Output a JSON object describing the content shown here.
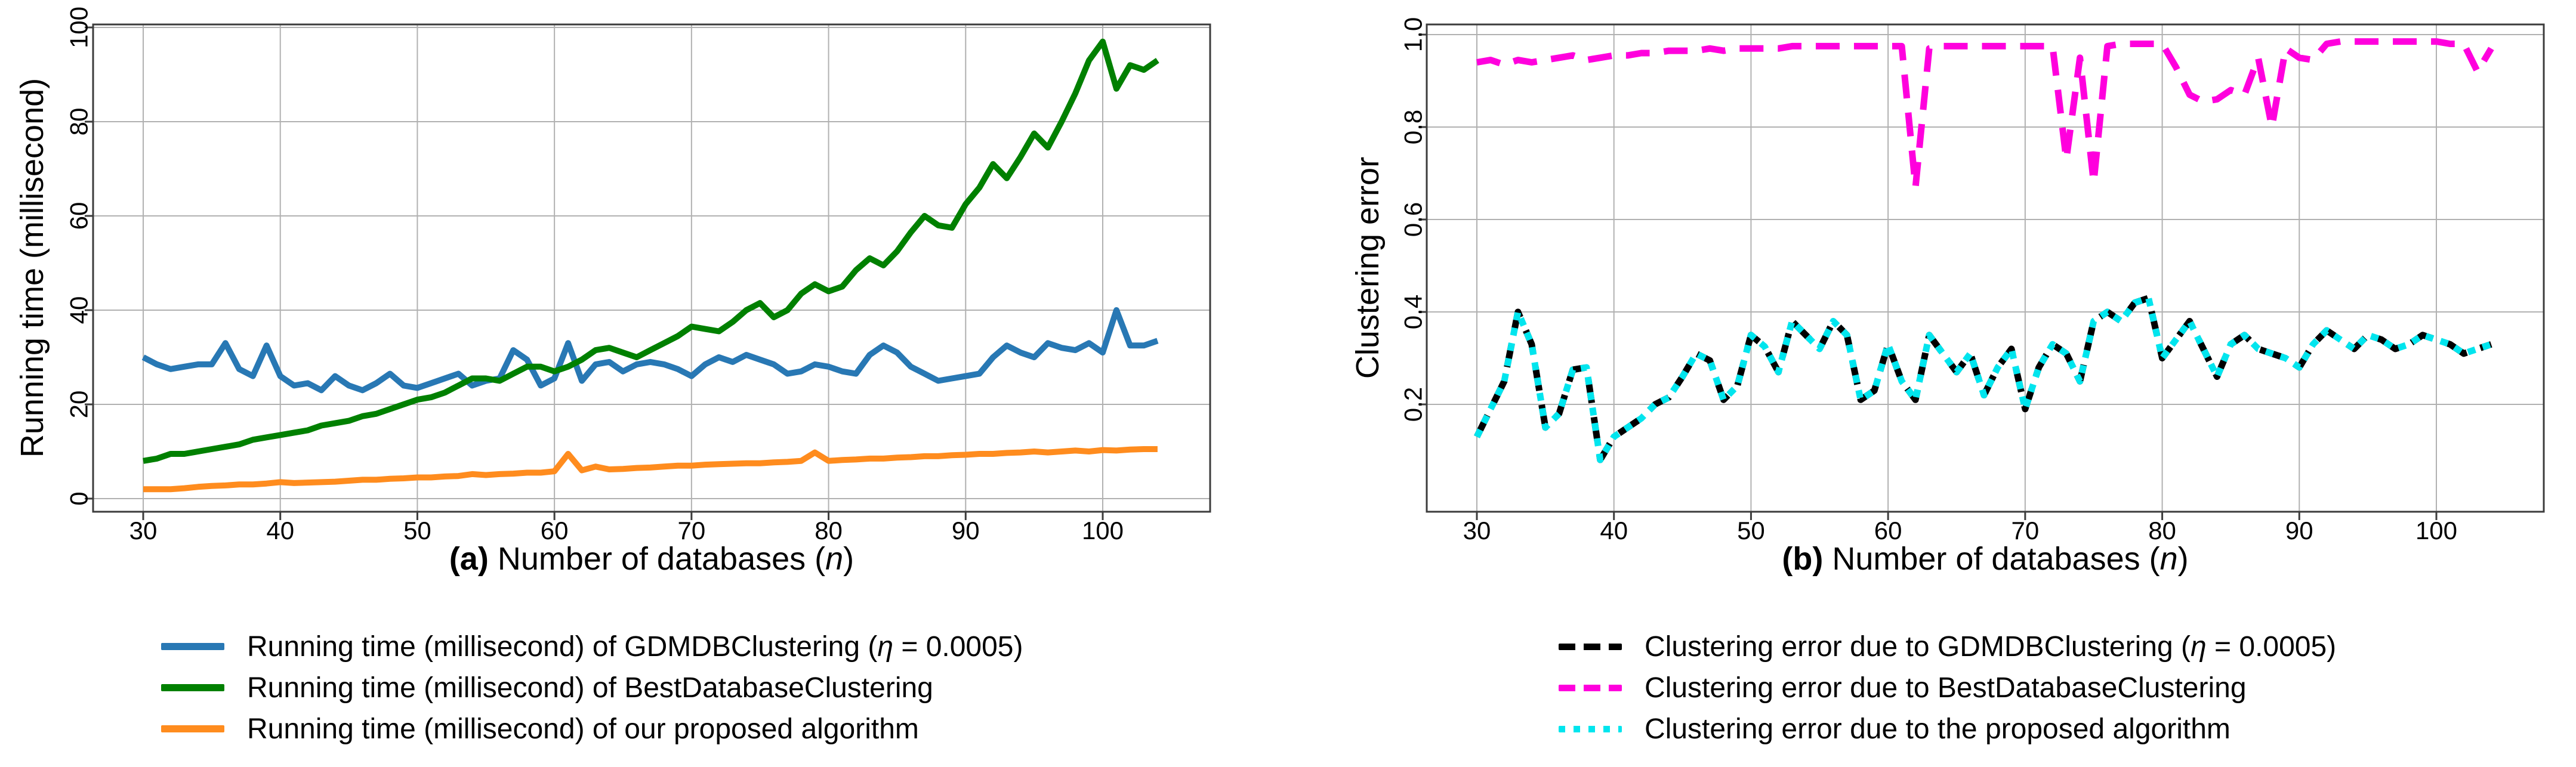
{
  "figure": {
    "panels": [
      {
        "id": "a",
        "ylabel": "Running time (millisecond)",
        "xlabel_prefix": "(a)",
        "xlabel_main": " Number of databases (",
        "xlabel_var": "n",
        "xlabel_suffix": ")",
        "xticks": [
          "30",
          "40",
          "50",
          "60",
          "70",
          "80",
          "90",
          "100"
        ],
        "yticks": [
          "0",
          "20",
          "40",
          "60",
          "80",
          "100"
        ]
      },
      {
        "id": "b",
        "ylabel": "Clustering error",
        "xlabel_prefix": "(b)",
        "xlabel_main": " Number of databases (",
        "xlabel_var": "n",
        "xlabel_suffix": ")",
        "xticks": [
          "30",
          "40",
          "50",
          "60",
          "70",
          "80",
          "90",
          "100"
        ],
        "yticks": [
          "0.2",
          "0.4",
          "0.6",
          "0.8",
          "1.0"
        ]
      }
    ]
  },
  "legend_left": {
    "items": [
      {
        "pre": "Running time (millisecond) of GDMDBClustering (",
        "eta": "η",
        "post": " = 0.0005)",
        "color": "#2878b4",
        "style": "solid"
      },
      {
        "label": "Running time (millisecond) of BestDatabaseClustering",
        "color": "#008000",
        "style": "solid"
      },
      {
        "label": "Running time (millisecond) of our proposed algorithm",
        "color": "#ff8c1e",
        "style": "solid"
      }
    ]
  },
  "legend_right": {
    "items": [
      {
        "pre": "Clustering error due to GDMDBClustering (",
        "eta": "η",
        "post": " = 0.0005)",
        "color": "#000000",
        "style": "dashed"
      },
      {
        "label": "Clustering error due to BestDatabaseClustering",
        "color": "#ff00dd",
        "style": "dashed"
      },
      {
        "label": "Clustering error due to the proposed algorithm",
        "color": "#00e5ee",
        "style": "dotted"
      }
    ]
  },
  "colors": {
    "grid": "#b1b1b1",
    "spine": "#3c3c3c",
    "background": "#ffffff"
  },
  "chart_data": [
    {
      "type": "line",
      "xlabel": "(a) Number of databases (n)",
      "ylabel": "Running time (millisecond)",
      "xlim": [
        26.3,
        107.8
      ],
      "ylim": [
        -2.8,
        100.6
      ],
      "grid": true,
      "legend_position": "below",
      "xticks": [
        30,
        40,
        50,
        60,
        70,
        80,
        90,
        100
      ],
      "yticks": [
        0,
        20,
        40,
        60,
        80,
        100
      ],
      "x": [
        30,
        31,
        32,
        33,
        34,
        35,
        36,
        37,
        38,
        39,
        40,
        41,
        42,
        43,
        44,
        45,
        46,
        47,
        48,
        49,
        50,
        51,
        52,
        53,
        54,
        55,
        56,
        57,
        58,
        59,
        60,
        61,
        62,
        63,
        64,
        65,
        66,
        67,
        68,
        69,
        70,
        71,
        72,
        73,
        74,
        75,
        76,
        77,
        78,
        79,
        80,
        81,
        82,
        83,
        84,
        85,
        86,
        87,
        88,
        89,
        90,
        91,
        92,
        93,
        94,
        95,
        96,
        97,
        98,
        99,
        100,
        101,
        102,
        103,
        104
      ],
      "series": [
        {
          "name": "Running time (millisecond) of GDMDBClustering (η = 0.0005)",
          "color": "#2878b4",
          "line_style": "solid",
          "values": [
            30,
            28.5,
            27.5,
            28,
            28.5,
            28.5,
            33,
            27.5,
            26,
            32.5,
            26,
            24,
            24.5,
            23,
            26,
            24,
            23,
            24.5,
            26.5,
            24,
            23.5,
            24.5,
            25.5,
            26.5,
            24,
            25,
            25.5,
            31.5,
            29.5,
            24,
            25.5,
            33,
            25,
            28.5,
            29,
            27,
            28.5,
            29,
            28.5,
            27.5,
            26,
            28.5,
            30,
            29,
            30.5,
            29.5,
            28.5,
            26.5,
            27,
            28.5,
            28,
            27,
            26.5,
            30.5,
            32.5,
            31,
            28,
            26.5,
            25,
            25.5,
            26,
            26.5,
            30,
            32.5,
            31,
            30,
            33,
            32,
            31.5,
            33,
            31,
            40,
            32.5,
            32.5,
            33.5
          ]
        },
        {
          "name": "Running time (millisecond) of BestDatabaseClustering",
          "color": "#008000",
          "line_style": "solid",
          "values": [
            8,
            8.5,
            9.5,
            9.5,
            10,
            10.5,
            11,
            11.5,
            12.5,
            13,
            13.5,
            14,
            14.5,
            15.5,
            16,
            16.5,
            17.5,
            18,
            19,
            20,
            21,
            21.5,
            22.5,
            24,
            25.5,
            25.5,
            25,
            26.5,
            28,
            28,
            27,
            28,
            29.5,
            31.5,
            32,
            31,
            30,
            31.5,
            33,
            34.5,
            36.5,
            36,
            35.5,
            37.5,
            40,
            41.5,
            38.5,
            40,
            43.5,
            45.5,
            44,
            45,
            48.5,
            51,
            49.5,
            52.5,
            56.5,
            60,
            58,
            57.5,
            62.5,
            66,
            71,
            68,
            72.5,
            77.5,
            74.5,
            80,
            86,
            93,
            97,
            87,
            92,
            91,
            93
          ]
        },
        {
          "name": "Running time (millisecond) of our proposed algorithm",
          "color": "#ff8c1e",
          "line_style": "solid",
          "values": [
            2,
            2,
            2,
            2.2,
            2.5,
            2.7,
            2.8,
            3,
            3,
            3.2,
            3.5,
            3.3,
            3.4,
            3.5,
            3.6,
            3.8,
            4,
            4,
            4.2,
            4.3,
            4.5,
            4.5,
            4.7,
            4.8,
            5.2,
            5,
            5.2,
            5.3,
            5.5,
            5.5,
            5.8,
            9.5,
            6,
            6.8,
            6.2,
            6.3,
            6.5,
            6.6,
            6.8,
            7,
            7,
            7.2,
            7.3,
            7.4,
            7.5,
            7.5,
            7.7,
            7.8,
            8,
            9.8,
            8,
            8.2,
            8.3,
            8.5,
            8.5,
            8.7,
            8.8,
            9,
            9,
            9.2,
            9.3,
            9.5,
            9.5,
            9.7,
            9.8,
            10,
            9.8,
            10,
            10.2,
            10,
            10.3,
            10.2,
            10.4,
            10.5,
            10.5
          ]
        }
      ]
    },
    {
      "type": "line",
      "xlabel": "(b) Number of databases (n)",
      "ylabel": "Clustering error",
      "xlim": [
        26.3,
        107.8
      ],
      "ylim": [
        -0.03,
        1.02
      ],
      "grid": true,
      "legend_position": "below",
      "xticks": [
        30,
        40,
        50,
        60,
        70,
        80,
        90,
        100
      ],
      "yticks": [
        0.2,
        0.4,
        0.6,
        0.8,
        1.0
      ],
      "x": [
        30,
        31,
        32,
        33,
        34,
        35,
        36,
        37,
        38,
        39,
        40,
        41,
        42,
        43,
        44,
        45,
        46,
        47,
        48,
        49,
        50,
        51,
        52,
        53,
        54,
        55,
        56,
        57,
        58,
        59,
        60,
        61,
        62,
        63,
        64,
        65,
        66,
        67,
        68,
        69,
        70,
        71,
        72,
        73,
        74,
        75,
        76,
        77,
        78,
        79,
        80,
        81,
        82,
        83,
        84,
        85,
        86,
        87,
        88,
        89,
        90,
        91,
        92,
        93,
        94,
        95,
        96,
        97,
        98,
        99,
        100,
        101,
        102,
        103,
        104
      ],
      "series": [
        {
          "name": "Clustering error due to GDMDBClustering (η = 0.0005)",
          "color": "#000000",
          "line_style": "dashed",
          "values": [
            0.13,
            0.19,
            0.25,
            0.4,
            0.33,
            0.15,
            0.18,
            0.275,
            0.28,
            0.08,
            0.13,
            0.15,
            0.17,
            0.2,
            0.215,
            0.26,
            0.31,
            0.295,
            0.21,
            0.24,
            0.35,
            0.325,
            0.27,
            0.38,
            0.35,
            0.32,
            0.38,
            0.35,
            0.21,
            0.23,
            0.33,
            0.25,
            0.21,
            0.35,
            0.31,
            0.27,
            0.31,
            0.22,
            0.28,
            0.32,
            0.19,
            0.28,
            0.33,
            0.31,
            0.25,
            0.38,
            0.4,
            0.38,
            0.42,
            0.43,
            0.3,
            0.34,
            0.38,
            0.32,
            0.26,
            0.33,
            0.35,
            0.32,
            0.31,
            0.3,
            0.28,
            0.33,
            0.36,
            0.34,
            0.32,
            0.35,
            0.34,
            0.32,
            0.33,
            0.35,
            0.34,
            0.33,
            0.31,
            0.32,
            0.33
          ]
        },
        {
          "name": "Clustering error due to BestDatabaseClustering",
          "color": "#ff00dd",
          "line_style": "dashed",
          "values": [
            0.94,
            0.945,
            0.935,
            0.945,
            0.94,
            0.945,
            0.95,
            0.955,
            0.945,
            0.95,
            0.955,
            0.955,
            0.96,
            0.96,
            0.965,
            0.965,
            0.965,
            0.97,
            0.965,
            0.97,
            0.97,
            0.97,
            0.97,
            0.975,
            0.975,
            0.975,
            0.975,
            0.975,
            0.975,
            0.975,
            0.975,
            0.975,
            0.67,
            0.97,
            0.975,
            0.975,
            0.975,
            0.975,
            0.975,
            0.975,
            0.975,
            0.975,
            0.975,
            0.73,
            0.95,
            0.68,
            0.975,
            0.98,
            0.98,
            0.98,
            0.98,
            0.93,
            0.87,
            0.855,
            0.86,
            0.88,
            0.87,
            0.95,
            0.8,
            0.97,
            0.95,
            0.945,
            0.98,
            0.985,
            0.985,
            0.985,
            0.985,
            0.985,
            0.985,
            0.985,
            0.985,
            0.98,
            0.98,
            0.92,
            0.97
          ]
        },
        {
          "name": "Clustering error due to the proposed algorithm",
          "color": "#00e5ee",
          "line_style": "dotted",
          "values": [
            0.13,
            0.19,
            0.25,
            0.4,
            0.33,
            0.15,
            0.18,
            0.275,
            0.28,
            0.08,
            0.13,
            0.15,
            0.17,
            0.2,
            0.215,
            0.26,
            0.31,
            0.295,
            0.21,
            0.24,
            0.35,
            0.325,
            0.27,
            0.38,
            0.35,
            0.32,
            0.38,
            0.35,
            0.21,
            0.23,
            0.33,
            0.25,
            0.21,
            0.35,
            0.31,
            0.27,
            0.31,
            0.22,
            0.28,
            0.32,
            0.19,
            0.28,
            0.33,
            0.31,
            0.25,
            0.38,
            0.4,
            0.38,
            0.42,
            0.43,
            0.3,
            0.34,
            0.38,
            0.32,
            0.26,
            0.33,
            0.35,
            0.32,
            0.31,
            0.3,
            0.28,
            0.33,
            0.36,
            0.34,
            0.32,
            0.35,
            0.34,
            0.32,
            0.33,
            0.35,
            0.34,
            0.33,
            0.31,
            0.32,
            0.33
          ]
        }
      ]
    }
  ]
}
